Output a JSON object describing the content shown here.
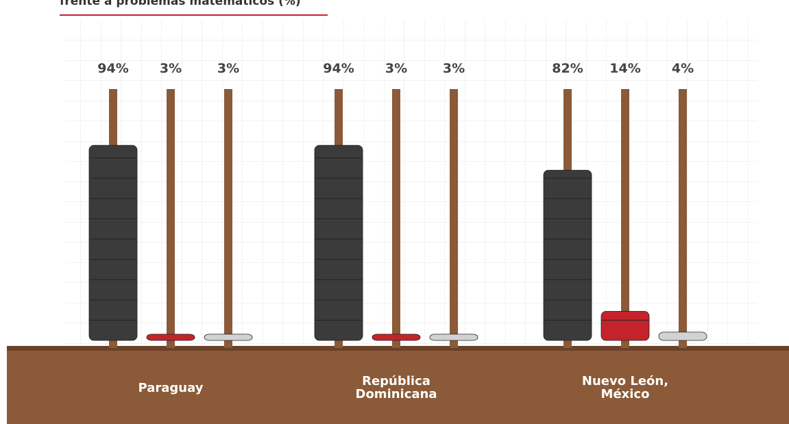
{
  "chart_data": {
    "type": "bar",
    "title": "frente a problemas matemáticos (%)",
    "categories": [
      "Paraguay",
      "República\nDominicana",
      "Nuevo León,\nMéxico"
    ],
    "series": [
      {
        "color": "#3b3b3b",
        "values": [
          94,
          94,
          82
        ],
        "value_labels": [
          "94%",
          "94%",
          "82%"
        ]
      },
      {
        "color": "#c4232b",
        "values": [
          3,
          3,
          14
        ],
        "value_labels": [
          "3%",
          "3%",
          "14%"
        ]
      },
      {
        "color": "#d2d2d2",
        "values": [
          3,
          3,
          4
        ],
        "value_labels": [
          "3%",
          "3%",
          "4%"
        ]
      }
    ]
  }
}
